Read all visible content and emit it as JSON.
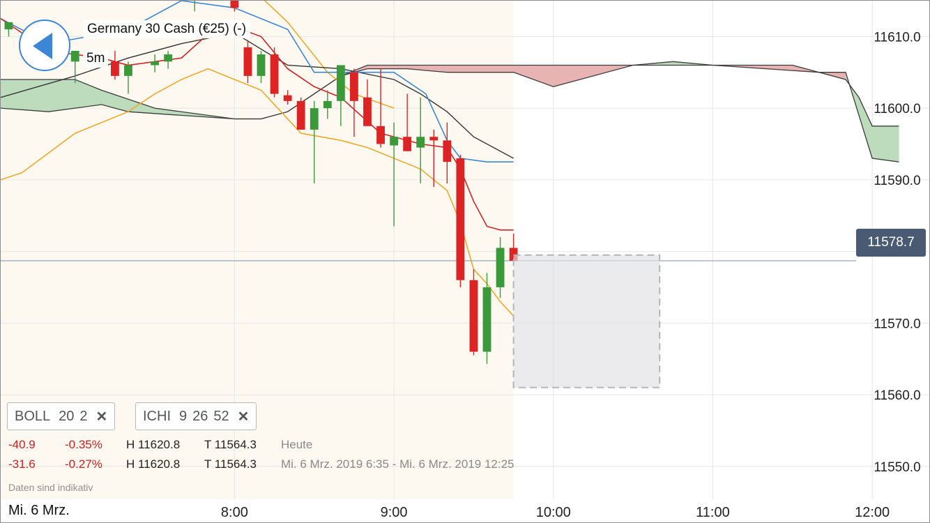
{
  "header": {
    "instrument": "Germany 30 Cash (€25) (-)",
    "timeframe": "5m",
    "back_icon": "chevron-left-icon"
  },
  "colors": {
    "up": "#3a9a3a",
    "down": "#dd2424",
    "boll_mid": "#d52222",
    "boll_band": "#f0a92a",
    "ichimoku_tenkan": "#3d86d6",
    "ichimoku_kijun": "#333333",
    "cloud_bull": "#bcdcbc",
    "cloud_bear": "#e8b3b3",
    "price_tag": "#4a5a73"
  },
  "indicators": [
    {
      "name": "BOLL",
      "params": [
        "20",
        "2"
      ],
      "close_icon": "close-icon"
    },
    {
      "name": "ICHI",
      "params": [
        "9",
        "26",
        "52"
      ],
      "close_icon": "close-icon"
    }
  ],
  "stats": [
    {
      "change": "-40.9",
      "pct": "-0.35%",
      "high": "H 11620.8",
      "low": "T 11564.3",
      "label": "Heute"
    },
    {
      "change": "-31.6",
      "pct": "-0.27%",
      "high": "H 11620.8",
      "low": "T 11564.3",
      "label": "Mi. 6 Mrz. 2019 6:35 - Mi. 6 Mrz. 2019 12:25"
    }
  ],
  "footer": {
    "note": "Daten sind indikativ",
    "date_label": "Mi. 6 Mrz."
  },
  "current_price": "11578.7",
  "chart_data": {
    "type": "candlestick",
    "y_ticks": [
      "11550.0",
      "11560.0",
      "11570.0",
      "11580.0",
      "11590.0",
      "11600.0",
      "11610.0"
    ],
    "y_tick_values": [
      11550,
      11560,
      11570,
      11580,
      11590,
      11600,
      11610
    ],
    "ylim": [
      11542,
      11615
    ],
    "x_ticks": [
      "8:00",
      "9:00",
      "10:00",
      "11:00",
      "12:00"
    ],
    "x_tick_minutes": [
      480,
      540,
      600,
      660,
      720
    ],
    "xlim_minutes": [
      392,
      742
    ],
    "interval_minutes": 5,
    "session_shading_end_minutes": 585,
    "candles": [
      {
        "t": 395,
        "o": 11611.0,
        "h": 11612.0,
        "l": 11610.0,
        "c": 11612.0
      },
      {
        "t": 420,
        "o": 11606.5,
        "h": 11608.0,
        "l": 11603.5,
        "c": 11608.0
      },
      {
        "t": 435,
        "o": 11606.5,
        "h": 11608.0,
        "l": 11604.0,
        "c": 11604.5
      },
      {
        "t": 440,
        "o": 11604.5,
        "h": 11606.5,
        "l": 11602.0,
        "c": 11606.0
      },
      {
        "t": 450,
        "o": 11606.0,
        "h": 11607.5,
        "l": 11605.0,
        "c": 11606.5
      },
      {
        "t": 455,
        "o": 11606.5,
        "h": 11608.0,
        "l": 11605.5,
        "c": 11607.5
      },
      {
        "t": 465,
        "o": 11615.0,
        "h": 11617.0,
        "l": 11613.5,
        "c": 11617.0
      },
      {
        "t": 470,
        "o": 11617.0,
        "h": 11618.0,
        "l": 11616.0,
        "c": 11618.0
      },
      {
        "t": 480,
        "o": 11618.0,
        "h": 11619.0,
        "l": 11613.5,
        "c": 11614.0
      },
      {
        "t": 485,
        "o": 11608.5,
        "h": 11609.5,
        "l": 11603.5,
        "c": 11604.5
      },
      {
        "t": 490,
        "o": 11604.5,
        "h": 11608.0,
        "l": 11603.5,
        "c": 11607.5
      },
      {
        "t": 495,
        "o": 11607.5,
        "h": 11608.5,
        "l": 11601.5,
        "c": 11602.0
      },
      {
        "t": 500,
        "o": 11601.8,
        "h": 11602.5,
        "l": 11600.5,
        "c": 11601.0
      },
      {
        "t": 505,
        "o": 11601.0,
        "h": 11601.5,
        "l": 11597.0,
        "c": 11597.0
      },
      {
        "t": 510,
        "o": 11597.0,
        "h": 11601.0,
        "l": 11589.5,
        "c": 11600.0
      },
      {
        "t": 515,
        "o": 11600.0,
        "h": 11602.5,
        "l": 11598.5,
        "c": 11601.0
      },
      {
        "t": 520,
        "o": 11601.0,
        "h": 11606.0,
        "l": 11597.5,
        "c": 11606.0
      },
      {
        "t": 525,
        "o": 11605.0,
        "h": 11605.5,
        "l": 11596.0,
        "c": 11601.0
      },
      {
        "t": 530,
        "o": 11601.5,
        "h": 11604.0,
        "l": 11597.5,
        "c": 11597.5
      },
      {
        "t": 535,
        "o": 11597.5,
        "h": 11605.5,
        "l": 11594.5,
        "c": 11595.0
      },
      {
        "t": 540,
        "o": 11594.8,
        "h": 11598.0,
        "l": 11583.5,
        "c": 11596.0
      },
      {
        "t": 545,
        "o": 11596.0,
        "h": 11602.0,
        "l": 11594.0,
        "c": 11594.0
      },
      {
        "t": 550,
        "o": 11594.5,
        "h": 11601.5,
        "l": 11589.5,
        "c": 11596.0
      },
      {
        "t": 555,
        "o": 11596.0,
        "h": 11597.0,
        "l": 11589.0,
        "c": 11595.5
      },
      {
        "t": 560,
        "o": 11595.5,
        "h": 11598.0,
        "l": 11589.5,
        "c": 11592.5
      },
      {
        "t": 565,
        "o": 11593.0,
        "h": 11593.5,
        "l": 11575.0,
        "c": 11576.0
      },
      {
        "t": 570,
        "o": 11576.0,
        "h": 11577.5,
        "l": 11565.5,
        "c": 11566.0
      },
      {
        "t": 575,
        "o": 11566.0,
        "h": 11577.0,
        "l": 11564.3,
        "c": 11575.0
      },
      {
        "t": 580,
        "o": 11575.0,
        "h": 11582.0,
        "l": 11573.5,
        "c": 11580.5
      },
      {
        "t": 585,
        "o": 11580.5,
        "h": 11582.5,
        "l": 11578.0,
        "c": 11578.7
      }
    ],
    "selection_box": {
      "t0": 585,
      "t1": 640,
      "y0": 11561.0,
      "y1": 11579.5
    },
    "bollinger_middle": [
      [
        392,
        11612.5
      ],
      [
        410,
        11608.0
      ],
      [
        430,
        11607.0
      ],
      [
        440,
        11606.0
      ],
      [
        460,
        11607.0
      ],
      [
        475,
        11612.0
      ],
      [
        490,
        11610.0
      ],
      [
        500,
        11605.5
      ],
      [
        510,
        11603.0
      ],
      [
        520,
        11601.5
      ],
      [
        535,
        11596.5
      ],
      [
        550,
        11595.0
      ],
      [
        560,
        11594.5
      ],
      [
        565,
        11591.5
      ],
      [
        570,
        11587.0
      ],
      [
        575,
        11583.5
      ],
      [
        580,
        11583.0
      ],
      [
        585,
        11583.0
      ]
    ],
    "bollinger_upper": [
      [
        392,
        11620.0
      ],
      [
        420,
        11618.0
      ],
      [
        450,
        11617.0
      ],
      [
        470,
        11621.0
      ],
      [
        480,
        11619.0
      ],
      [
        500,
        11612.0
      ],
      [
        515,
        11605.0
      ],
      [
        525,
        11602.0
      ],
      [
        540,
        11600.0
      ]
    ],
    "bollinger_lower": [
      [
        392,
        11590.0
      ],
      [
        400,
        11591.0
      ],
      [
        420,
        11596.5
      ],
      [
        440,
        11599.5
      ],
      [
        450,
        11602.0
      ],
      [
        460,
        11604.0
      ],
      [
        470,
        11605.5
      ],
      [
        480,
        11604.0
      ],
      [
        490,
        11602.5
      ],
      [
        505,
        11596.5
      ],
      [
        520,
        11595.5
      ],
      [
        530,
        11594.5
      ],
      [
        550,
        11591.5
      ],
      [
        560,
        11588.5
      ],
      [
        565,
        11584.0
      ],
      [
        570,
        11577.5
      ],
      [
        575,
        11575.5
      ],
      [
        580,
        11573.0
      ],
      [
        585,
        11571.0
      ]
    ],
    "ichimoku_tenkan": [
      [
        392,
        11612.5
      ],
      [
        410,
        11609.0
      ],
      [
        440,
        11611.0
      ],
      [
        460,
        11615.0
      ],
      [
        480,
        11614.0
      ],
      [
        500,
        11611.0
      ],
      [
        510,
        11605.0
      ],
      [
        540,
        11605.0
      ],
      [
        552,
        11602.0
      ],
      [
        560,
        11595.5
      ],
      [
        565,
        11593.0
      ],
      [
        575,
        11592.5
      ],
      [
        585,
        11592.5
      ]
    ],
    "ichimoku_kijun": [
      [
        392,
        11601.5
      ],
      [
        420,
        11604.5
      ],
      [
        440,
        11607.0
      ],
      [
        460,
        11609.0
      ],
      [
        480,
        11610.5
      ],
      [
        500,
        11606.0
      ],
      [
        520,
        11605.5
      ],
      [
        540,
        11604.0
      ],
      [
        550,
        11602.0
      ],
      [
        560,
        11599.5
      ],
      [
        570,
        11596.0
      ],
      [
        585,
        11593.0
      ]
    ],
    "ichimoku_span_a": [
      [
        392,
        11604.0
      ],
      [
        420,
        11604.0
      ],
      [
        430,
        11602.5
      ],
      [
        450,
        11600.0
      ],
      [
        480,
        11598.5
      ],
      [
        490,
        11598.5
      ],
      [
        500,
        11599.5
      ],
      [
        510,
        11602.0
      ],
      [
        520,
        11604.5
      ],
      [
        530,
        11605.5
      ],
      [
        545,
        11605.5
      ],
      [
        560,
        11605.0
      ],
      [
        585,
        11605.0
      ],
      [
        600,
        11603.0
      ],
      [
        610,
        11604.0
      ],
      [
        630,
        11606.0
      ],
      [
        645,
        11606.5
      ],
      [
        660,
        11606.0
      ],
      [
        700,
        11605.0
      ],
      [
        710,
        11604.0
      ],
      [
        715,
        11601.5
      ],
      [
        720,
        11597.5
      ],
      [
        730,
        11597.5
      ]
    ],
    "ichimoku_span_b": [
      [
        392,
        11600.0
      ],
      [
        410,
        11599.5
      ],
      [
        430,
        11600.5
      ],
      [
        440,
        11599.5
      ],
      [
        460,
        11599.0
      ],
      [
        480,
        11598.5
      ],
      [
        490,
        11598.5
      ],
      [
        500,
        11599.5
      ],
      [
        510,
        11602.0
      ],
      [
        520,
        11604.5
      ],
      [
        530,
        11606.0
      ],
      [
        545,
        11606.0
      ],
      [
        560,
        11606.0
      ],
      [
        610,
        11606.0
      ],
      [
        630,
        11606.0
      ],
      [
        645,
        11606.0
      ],
      [
        660,
        11606.0
      ],
      [
        675,
        11606.0
      ],
      [
        690,
        11606.0
      ],
      [
        700,
        11605.0
      ],
      [
        710,
        11605.0
      ],
      [
        720,
        11593.0
      ],
      [
        730,
        11592.5
      ]
    ]
  }
}
